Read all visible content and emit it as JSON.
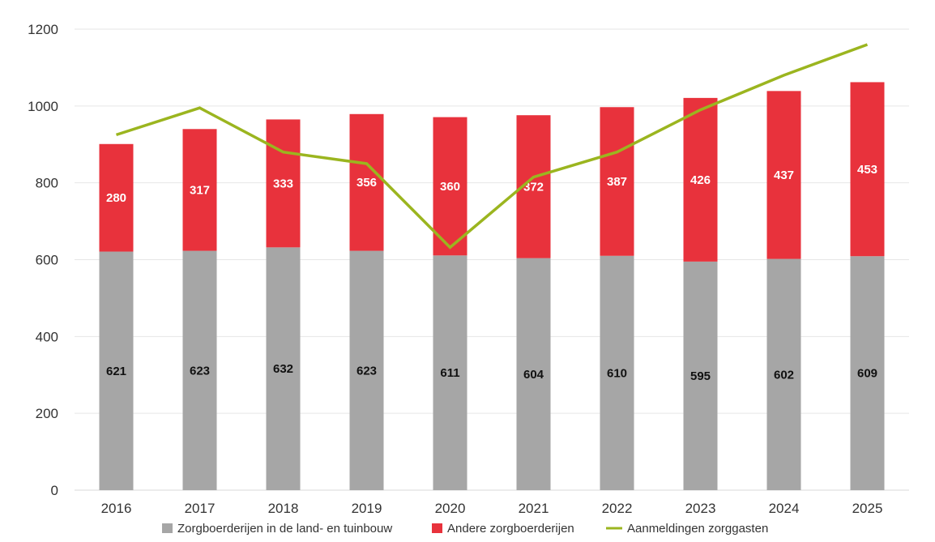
{
  "chart_data": {
    "type": "bar",
    "stacked": true,
    "categories": [
      "2016",
      "2017",
      "2018",
      "2019",
      "2020",
      "2021",
      "2022",
      "2023",
      "2024",
      "2025"
    ],
    "series": [
      {
        "name": "Zorgboerderijen in de land- en tuinbouw",
        "kind": "bar",
        "color": "#a6a6a6",
        "label_color": "#111111",
        "values": [
          621,
          623,
          632,
          623,
          611,
          604,
          610,
          595,
          602,
          609
        ]
      },
      {
        "name": "Andere zorgboerderijen",
        "kind": "bar",
        "color": "#e8323c",
        "label_color": "#ffffff",
        "values": [
          280,
          317,
          333,
          356,
          360,
          372,
          387,
          426,
          437,
          453
        ]
      },
      {
        "name": "Aanmeldingen zorggasten",
        "kind": "line",
        "color": "#9bb51f",
        "values": [
          925,
          995,
          880,
          850,
          632,
          815,
          880,
          990,
          1080,
          1160
        ]
      }
    ],
    "ylim": [
      0,
      1200
    ],
    "yticks": [
      "0",
      "200",
      "400",
      "600",
      "800",
      "1000",
      "1200"
    ],
    "grid": true,
    "legend_position": "bottom"
  }
}
